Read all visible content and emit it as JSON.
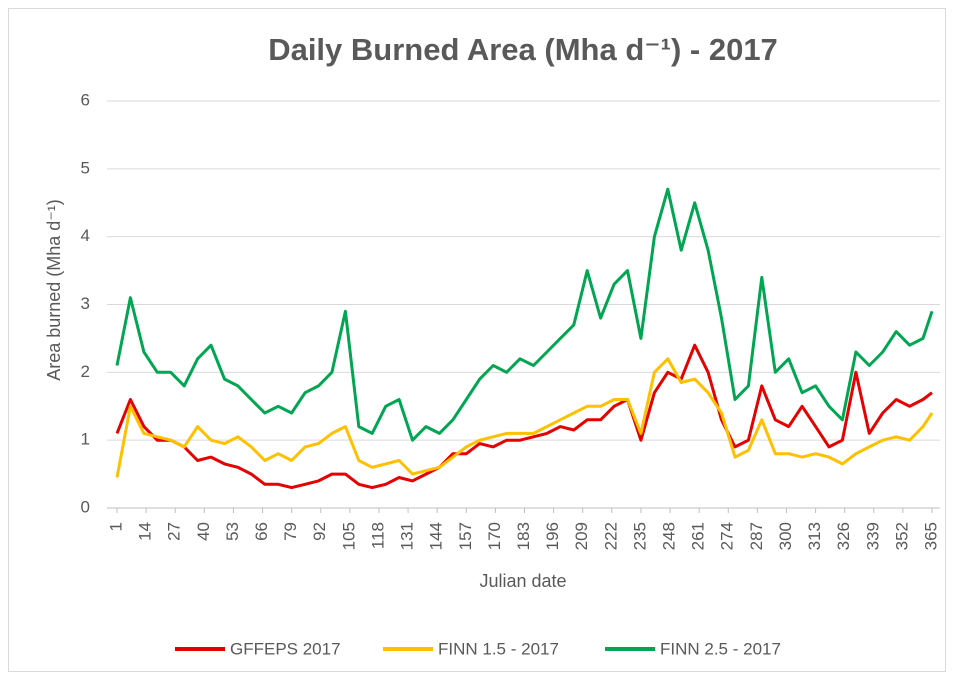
{
  "chart_data": {
    "type": "line",
    "title": "Daily Burned Area (Mha d⁻¹) - 2017",
    "x_label": "Julian date",
    "y_label": "Area burned (Mha d⁻¹)",
    "x": [
      1,
      7,
      13,
      19,
      25,
      31,
      37,
      43,
      49,
      55,
      61,
      67,
      73,
      79,
      85,
      91,
      97,
      103,
      109,
      115,
      121,
      127,
      133,
      139,
      145,
      151,
      157,
      163,
      169,
      175,
      181,
      187,
      193,
      199,
      205,
      211,
      217,
      223,
      229,
      235,
      241,
      247,
      253,
      259,
      265,
      271,
      277,
      283,
      289,
      295,
      301,
      307,
      313,
      319,
      325,
      331,
      337,
      343,
      349,
      355,
      361,
      365
    ],
    "series": [
      {
        "name": "GFFEPS 2017",
        "color": "#e60000",
        "values": [
          1.1,
          1.6,
          1.2,
          1.0,
          1.0,
          0.9,
          0.7,
          0.75,
          0.65,
          0.6,
          0.5,
          0.35,
          0.35,
          0.3,
          0.35,
          0.4,
          0.5,
          0.5,
          0.35,
          0.3,
          0.35,
          0.45,
          0.4,
          0.5,
          0.6,
          0.8,
          0.8,
          0.95,
          0.9,
          1.0,
          1.0,
          1.05,
          1.1,
          1.2,
          1.15,
          1.3,
          1.3,
          1.5,
          1.6,
          1.0,
          1.7,
          2.0,
          1.9,
          2.4,
          2.0,
          1.3,
          0.9,
          1.0,
          1.8,
          1.3,
          1.2,
          1.5,
          1.2,
          0.9,
          1.0,
          2.0,
          1.1,
          1.4,
          1.6,
          1.5,
          1.6,
          1.7
        ]
      },
      {
        "name": "FINN 1.5 - 2017",
        "color": "#ffc000",
        "values": [
          0.45,
          1.5,
          1.1,
          1.05,
          1.0,
          0.9,
          1.2,
          1.0,
          0.95,
          1.05,
          0.9,
          0.7,
          0.8,
          0.7,
          0.9,
          0.95,
          1.1,
          1.2,
          0.7,
          0.6,
          0.65,
          0.7,
          0.5,
          0.55,
          0.6,
          0.75,
          0.9,
          1.0,
          1.05,
          1.1,
          1.1,
          1.1,
          1.2,
          1.3,
          1.4,
          1.5,
          1.5,
          1.6,
          1.6,
          1.1,
          2.0,
          2.2,
          1.85,
          1.9,
          1.7,
          1.4,
          0.75,
          0.85,
          1.3,
          0.8,
          0.8,
          0.75,
          0.8,
          0.75,
          0.65,
          0.8,
          0.9,
          1.0,
          1.05,
          1.0,
          1.2,
          1.4
        ]
      },
      {
        "name": "FINN 2.5 - 2017",
        "color": "#00a651",
        "values": [
          2.1,
          3.1,
          2.3,
          2.0,
          2.0,
          1.8,
          2.2,
          2.4,
          1.9,
          1.8,
          1.6,
          1.4,
          1.5,
          1.4,
          1.7,
          1.8,
          2.0,
          2.9,
          1.2,
          1.1,
          1.5,
          1.6,
          1.0,
          1.2,
          1.1,
          1.3,
          1.6,
          1.9,
          2.1,
          2.0,
          2.2,
          2.1,
          2.3,
          2.5,
          2.7,
          3.5,
          2.8,
          3.3,
          3.5,
          2.5,
          4.0,
          4.7,
          3.8,
          4.5,
          3.8,
          2.8,
          1.6,
          1.8,
          3.4,
          2.0,
          2.2,
          1.7,
          1.8,
          1.5,
          1.3,
          2.3,
          2.1,
          2.3,
          2.6,
          2.4,
          2.5,
          2.9
        ]
      }
    ],
    "xlim": [
      1,
      365
    ],
    "xticks": [
      1,
      14,
      27,
      40,
      53,
      66,
      79,
      92,
      105,
      118,
      131,
      144,
      157,
      170,
      183,
      196,
      209,
      222,
      235,
      248,
      261,
      274,
      287,
      300,
      313,
      326,
      339,
      352,
      365
    ],
    "ylim": [
      0,
      6
    ],
    "yticks": [
      0,
      1,
      2,
      3,
      4,
      5,
      6
    ],
    "grid": true,
    "legend": "bottom"
  }
}
